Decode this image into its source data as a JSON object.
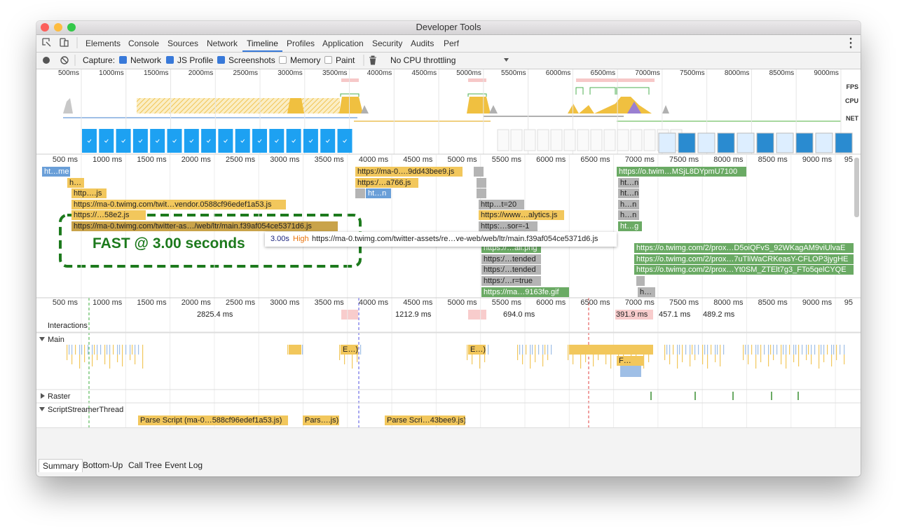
{
  "window": {
    "title": "Developer Tools"
  },
  "tabs": [
    "Elements",
    "Console",
    "Sources",
    "Network",
    "Timeline",
    "Profiles",
    "Application",
    "Security",
    "Audits",
    "Perf"
  ],
  "active_tab": 4,
  "toolbar": {
    "capture_label": "Capture:",
    "options": [
      {
        "label": "Network",
        "checked": true
      },
      {
        "label": "JS Profile",
        "checked": true
      },
      {
        "label": "Screenshots",
        "checked": true
      },
      {
        "label": "Memory",
        "checked": false
      },
      {
        "label": "Paint",
        "checked": false
      }
    ],
    "throttling": "No CPU throttling"
  },
  "overview": {
    "ticks": [
      "500ms",
      "1000ms",
      "1500ms",
      "2000ms",
      "2500ms",
      "3000ms",
      "3500ms",
      "4000ms",
      "4500ms",
      "5000ms",
      "5500ms",
      "6000ms",
      "6500ms",
      "7000ms",
      "7500ms",
      "8000ms",
      "8500ms",
      "9000ms"
    ],
    "lanes": [
      "FPS",
      "CPU",
      "NET"
    ]
  },
  "flame": {
    "ticks": [
      "500 ms",
      "1000 ms",
      "1500 ms",
      "2000 ms",
      "2500 ms",
      "3000 ms",
      "3500 ms",
      "4000 ms",
      "4500 ms",
      "5000 ms",
      "5500 ms",
      "6000 ms",
      "6500 ms",
      "7000 ms",
      "7500 ms",
      "8000 ms",
      "8500 ms",
      "9000 ms",
      "95"
    ],
    "requests": [
      "ht…me",
      "h…",
      "http….js",
      "https://ma-0.twimg.com/twit…vendor.0588cf96edef1a53.js",
      "https://…58e2.js",
      "https://ma-0.twimg.com/twitter-as…/web/ltr/main.f39af054ce5371d6.js",
      "https://ma-0….9dd43bee9.js",
      "https:/…a766.js",
      "ht…n",
      "http…t=20",
      "https://www…alytics.js",
      "https:…sor=-1",
      "https://…all.png",
      "https:/…tended",
      "https:/…tended",
      "https:/…r=true",
      "https://ma…9163fe.gif",
      "https://o.twim…MSjL8DYpmU7100",
      "ht…n",
      "ht…n",
      "h…n",
      "h…n",
      "ht…g",
      "https://o.twimg.com/2/prox…D5oiQFvS_92WKagAM9viUlvaE",
      "https://o.twimg.com/2/prox…7uTliWaCRKeasY-CFLOP3jygHE",
      "https://o.twimg.com/2/prox…Yt0SM_ZTElt7g3_FTo5qelCYQE",
      "h…"
    ],
    "annotation": "FAST @ 3.00 seconds",
    "tooltip": {
      "time": "3.00s",
      "priority": "High",
      "url": "https://ma-0.twimg.com/twitter-assets/re…ve-web/web/ltr/main.f39af054ce5371d6.js"
    }
  },
  "timeline": {
    "ticks": [
      "500 ms",
      "1000 ms",
      "1500 ms",
      "2000 ms",
      "2500 ms",
      "3000 ms",
      "3500 ms",
      "4000 ms",
      "4500 ms",
      "5000 ms",
      "5500 ms",
      "6000 ms",
      "6500 ms",
      "7000 ms",
      "7500 ms",
      "8000 ms",
      "8500 ms",
      "9000 ms",
      "95"
    ],
    "durations": [
      "2825.4 ms",
      "1212.9 ms",
      "694.0 ms",
      "391.9 ms",
      "457.1 ms",
      "489.2 ms"
    ],
    "interactions_label": "Interactions",
    "tracks": [
      {
        "name": "Main",
        "blocks": [
          "E…)",
          "E…)",
          "F…"
        ]
      },
      {
        "name": "Raster",
        "blocks": []
      },
      {
        "name": "ScriptStreamerThread",
        "blocks": [
          "Parse Script (ma-0…588cf96edef1a53.js)",
          "Pars….js)",
          "Parse Scri…43bee9.js)"
        ]
      }
    ]
  },
  "bottom_tabs": [
    "Summary",
    "Bottom-Up",
    "Call Tree",
    "Event Log"
  ],
  "active_bottom_tab": 0
}
